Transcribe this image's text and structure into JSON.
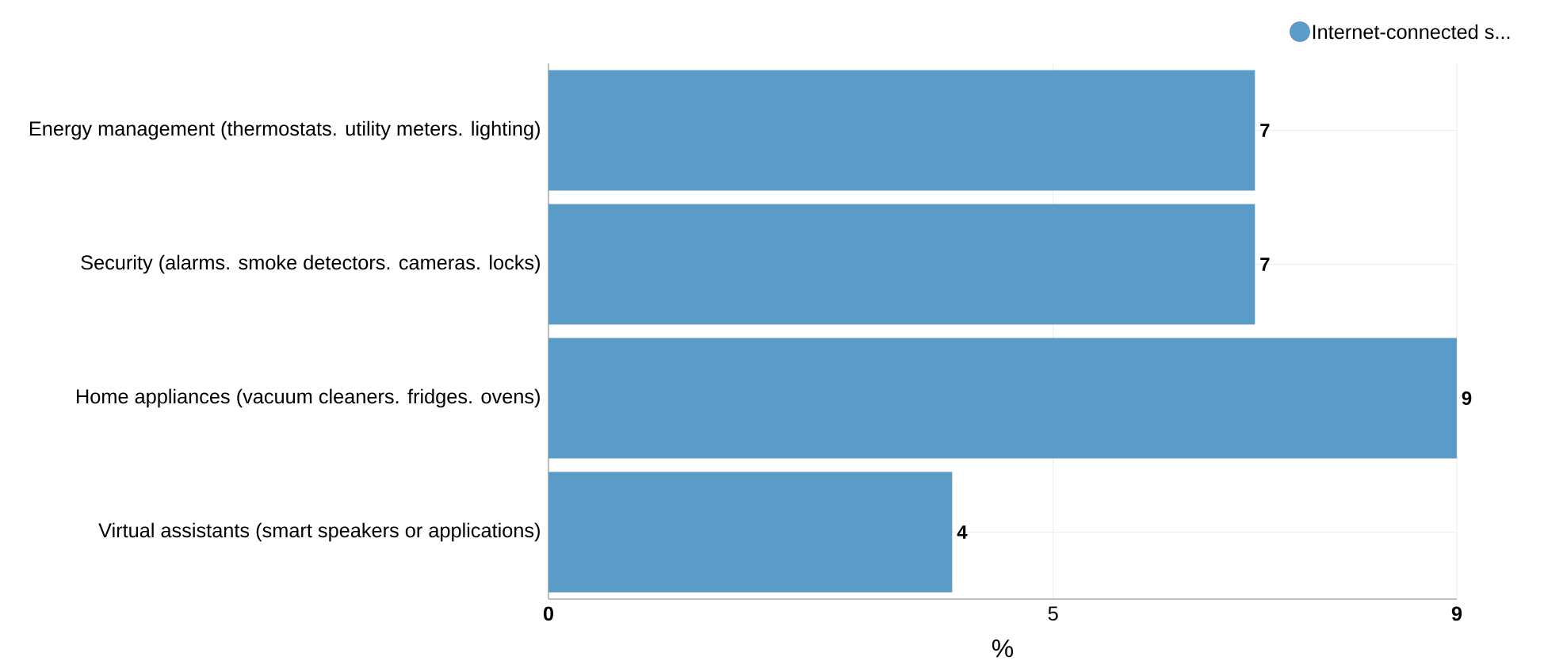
{
  "chart_data": {
    "type": "bar",
    "orientation": "horizontal",
    "xlabel": "%",
    "categories": [
      "Energy management (thermostats. utility meters. lighting)",
      "Security (alarms. smoke detectors. cameras. locks)",
      "Home appliances (vacuum cleaners. fridges. ovens)",
      "Virtual assistants (smart speakers or applications)"
    ],
    "series": [
      {
        "name": "Internet-connected s...",
        "color": "#5b9bc8",
        "values": [
          7,
          7,
          9,
          4
        ]
      }
    ],
    "xlim": [
      0,
      9
    ],
    "xticks": [
      0,
      5,
      9
    ],
    "grid": true,
    "legend": "top right",
    "data_labels": true
  }
}
